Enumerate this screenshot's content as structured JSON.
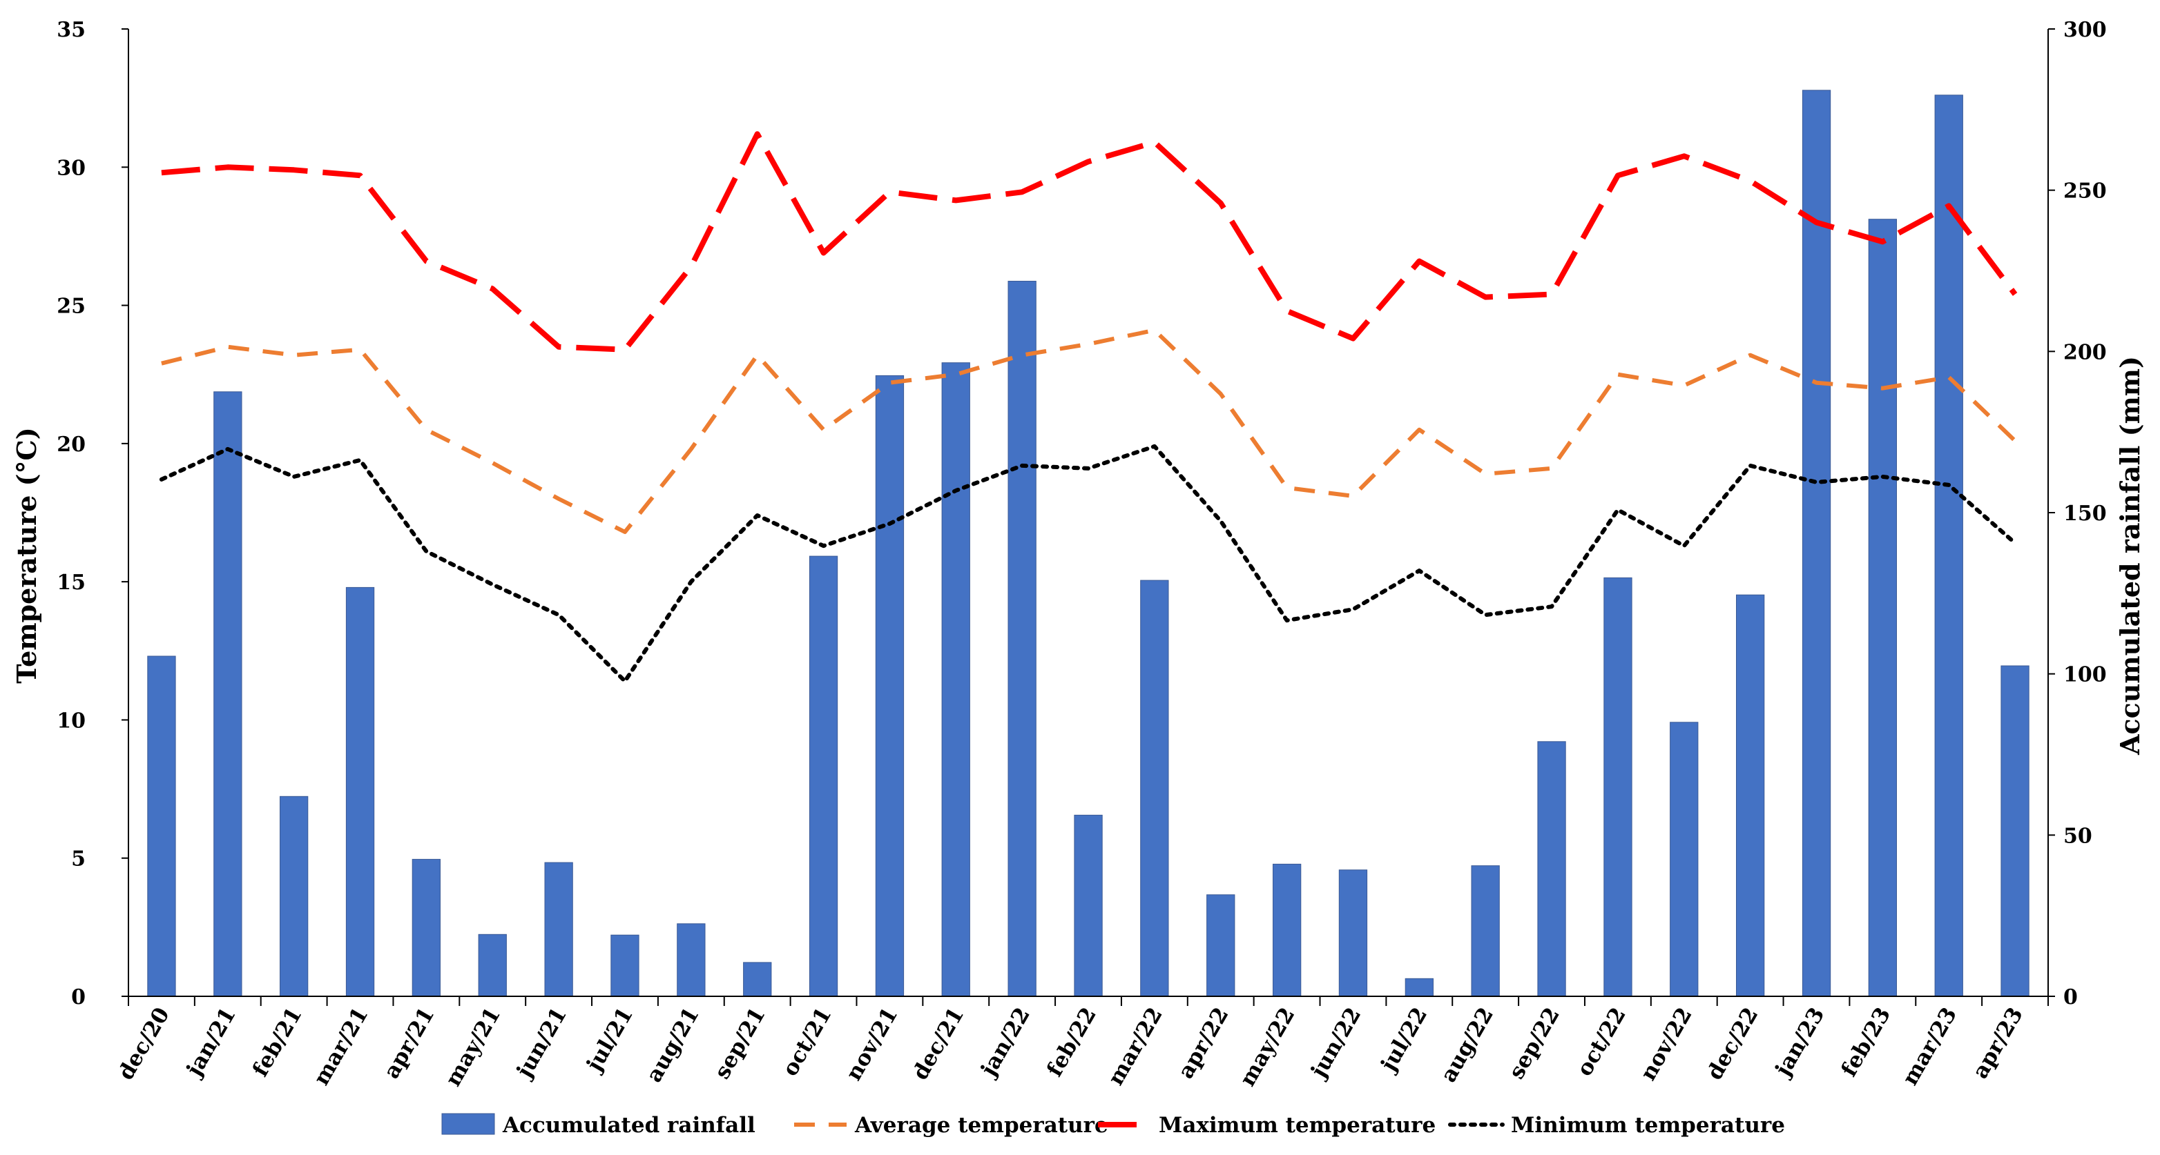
{
  "chart_data": {
    "type": "bar+line",
    "categories": [
      "dec/20",
      "jan/21",
      "feb/21",
      "mar/21",
      "apr/21",
      "may/21",
      "jun/21",
      "jul/21",
      "aug/21",
      "sep/21",
      "oct/21",
      "nov/21",
      "dec/21",
      "jan/22",
      "feb/22",
      "mar/22",
      "apr/22",
      "may/22",
      "jun/22",
      "jul/22",
      "aug/22",
      "sep/22",
      "oct/22",
      "nov/22",
      "dec/22",
      "jan/23",
      "feb/23",
      "mar/23",
      "apr/23"
    ],
    "left_axis": {
      "label": "Temperature (°C)",
      "range": [
        0,
        35
      ],
      "ticks": [
        "0",
        "5",
        "10",
        "15",
        "20",
        "25",
        "30",
        "35"
      ]
    },
    "right_axis": {
      "label": "Accumulated rainfall (mm)",
      "range": [
        0,
        300
      ],
      "ticks": [
        "0",
        "50",
        "100",
        "150",
        "200",
        "250",
        "300"
      ]
    },
    "series": [
      {
        "name": "Accumulated rainfall",
        "type": "bar",
        "axis": "right",
        "color": "#4472C4",
        "values": [
          105.5,
          187.5,
          62,
          126.8,
          42.5,
          19.2,
          41.5,
          19,
          22.5,
          10.5,
          136.5,
          192.5,
          196.5,
          221.8,
          56.2,
          129,
          31.5,
          41,
          39.2,
          5.5,
          40.5,
          79,
          129.8,
          85,
          124.5,
          281,
          241,
          279.5,
          102.5
        ]
      },
      {
        "name": "Average temperature",
        "type": "line",
        "axis": "left",
        "color": "#ED7D31",
        "dash": "dash",
        "values": [
          22.9,
          23.5,
          23.2,
          23.4,
          20.5,
          19.3,
          18,
          16.8,
          19.8,
          23.2,
          20.5,
          22.2,
          22.5,
          23.2,
          23.6,
          24.1,
          21.8,
          18.4,
          18.1,
          20.5,
          18.9,
          19.1,
          22.5,
          22.1,
          23.2,
          22.2,
          22,
          22.4,
          20.1
        ]
      },
      {
        "name": "Maximum temperature",
        "type": "line",
        "axis": "left",
        "color": "#FF0000",
        "dash": "longdash",
        "values": [
          29.8,
          30,
          29.9,
          29.7,
          26.6,
          25.6,
          23.5,
          23.4,
          26.4,
          31.2,
          26.9,
          29.1,
          28.8,
          29.1,
          30.2,
          30.9,
          28.7,
          24.8,
          23.8,
          26.6,
          25.3,
          25.4,
          29.7,
          30.4,
          29.5,
          28,
          27.3,
          28.6,
          25.4
        ]
      },
      {
        "name": "Minimum temperature",
        "type": "line",
        "axis": "left",
        "color": "#000000",
        "dash": "dot",
        "values": [
          18.7,
          19.8,
          18.8,
          19.4,
          16.1,
          14.9,
          13.8,
          11.4,
          15,
          17.4,
          16.3,
          17.1,
          18.3,
          19.2,
          19.1,
          19.9,
          17.2,
          13.6,
          14,
          15.4,
          13.8,
          14.1,
          17.6,
          16.3,
          19.2,
          18.6,
          18.8,
          18.5,
          16.4
        ]
      }
    ],
    "legend": {
      "placement": "bottom-center"
    }
  }
}
